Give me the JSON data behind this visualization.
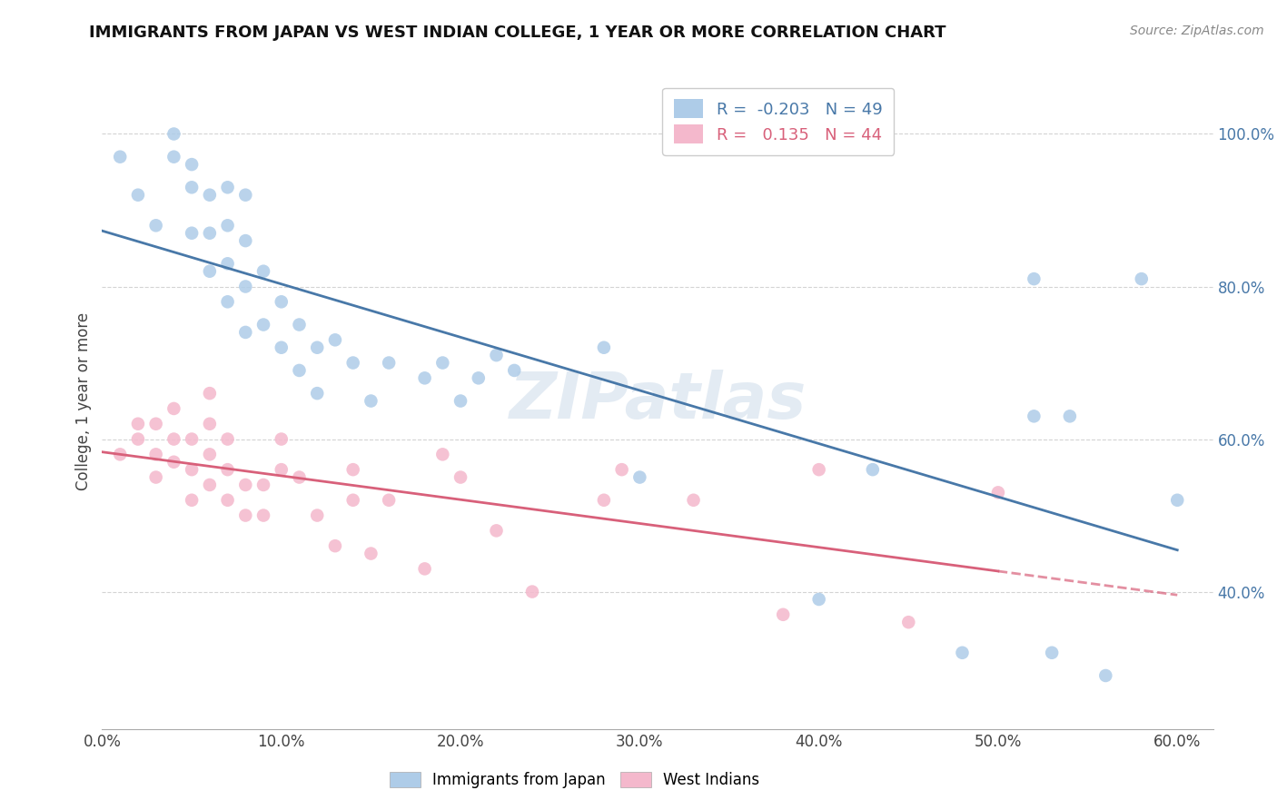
{
  "title": "IMMIGRANTS FROM JAPAN VS WEST INDIAN COLLEGE, 1 YEAR OR MORE CORRELATION CHART",
  "source": "Source: ZipAtlas.com",
  "ylabel": "College, 1 year or more",
  "xlim": [
    0.0,
    0.62
  ],
  "ylim": [
    0.22,
    1.08
  ],
  "xtick_vals": [
    0.0,
    0.1,
    0.2,
    0.3,
    0.4,
    0.5,
    0.6
  ],
  "xtick_labels": [
    "0.0%",
    "10.0%",
    "20.0%",
    "30.0%",
    "40.0%",
    "50.0%",
    "60.0%"
  ],
  "ytick_vals": [
    0.4,
    0.6,
    0.8,
    1.0
  ],
  "ytick_labels": [
    "40.0%",
    "60.0%",
    "80.0%",
    "100.0%"
  ],
  "R_blue": -0.203,
  "N_blue": 49,
  "R_pink": 0.135,
  "N_pink": 44,
  "legend_label_blue": "Immigrants from Japan",
  "legend_label_pink": "West Indians",
  "blue_color": "#aecce8",
  "pink_color": "#f4b8cc",
  "blue_line_color": "#4878a8",
  "pink_line_color": "#d8607a",
  "blue_scatter_x": [
    0.01,
    0.02,
    0.03,
    0.04,
    0.04,
    0.05,
    0.05,
    0.05,
    0.06,
    0.06,
    0.06,
    0.07,
    0.07,
    0.07,
    0.07,
    0.08,
    0.08,
    0.08,
    0.08,
    0.09,
    0.09,
    0.1,
    0.1,
    0.11,
    0.11,
    0.12,
    0.12,
    0.13,
    0.14,
    0.15,
    0.16,
    0.18,
    0.19,
    0.2,
    0.21,
    0.22,
    0.23,
    0.28,
    0.3,
    0.4,
    0.43,
    0.48,
    0.52,
    0.52,
    0.53,
    0.54,
    0.56,
    0.58,
    0.6
  ],
  "blue_scatter_y": [
    0.97,
    0.92,
    0.88,
    0.97,
    1.0,
    0.87,
    0.93,
    0.96,
    0.82,
    0.87,
    0.92,
    0.78,
    0.83,
    0.88,
    0.93,
    0.74,
    0.8,
    0.86,
    0.92,
    0.75,
    0.82,
    0.72,
    0.78,
    0.69,
    0.75,
    0.66,
    0.72,
    0.73,
    0.7,
    0.65,
    0.7,
    0.68,
    0.7,
    0.65,
    0.68,
    0.71,
    0.69,
    0.72,
    0.55,
    0.39,
    0.56,
    0.32,
    0.63,
    0.81,
    0.32,
    0.63,
    0.29,
    0.81,
    0.52
  ],
  "pink_scatter_x": [
    0.01,
    0.02,
    0.02,
    0.03,
    0.03,
    0.03,
    0.04,
    0.04,
    0.04,
    0.05,
    0.05,
    0.05,
    0.06,
    0.06,
    0.06,
    0.06,
    0.07,
    0.07,
    0.07,
    0.08,
    0.08,
    0.09,
    0.09,
    0.1,
    0.1,
    0.11,
    0.12,
    0.13,
    0.14,
    0.14,
    0.15,
    0.16,
    0.18,
    0.19,
    0.2,
    0.22,
    0.24,
    0.28,
    0.29,
    0.33,
    0.38,
    0.4,
    0.45,
    0.5
  ],
  "pink_scatter_y": [
    0.58,
    0.6,
    0.62,
    0.55,
    0.58,
    0.62,
    0.57,
    0.6,
    0.64,
    0.52,
    0.56,
    0.6,
    0.54,
    0.58,
    0.62,
    0.66,
    0.52,
    0.56,
    0.6,
    0.5,
    0.54,
    0.5,
    0.54,
    0.56,
    0.6,
    0.55,
    0.5,
    0.46,
    0.52,
    0.56,
    0.45,
    0.52,
    0.43,
    0.58,
    0.55,
    0.48,
    0.4,
    0.52,
    0.56,
    0.52,
    0.37,
    0.56,
    0.36,
    0.53
  ],
  "watermark": "ZIPatlas",
  "background_color": "#ffffff",
  "grid_color": "#d0d0d0"
}
